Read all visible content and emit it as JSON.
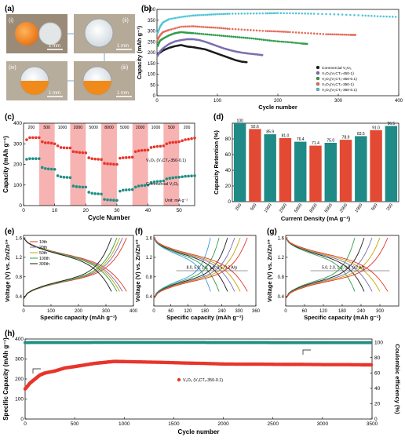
{
  "panel_letters": [
    "(a)",
    "(b)",
    "(c)",
    "(d)",
    "(e)",
    "(f)",
    "(g)",
    "(h)"
  ],
  "photo_labels": [
    "(i)",
    "(ii)",
    "(iii)",
    "(iv)"
  ],
  "scale_label": "1 mm",
  "colors": {
    "red": "#e8352b",
    "teal": "#1f8f83",
    "green": "#2f9e4a",
    "purple": "#7a6fb0",
    "black": "#1a1a1a",
    "salmon": "#e56b5a",
    "cyan": "#4fc6d8",
    "band": "#f7b2b2",
    "barRed": "#e24a33",
    "barTeal": "#1f8a86"
  },
  "chart_data": [
    {
      "id": "b",
      "type": "scatter",
      "xlabel": "Cycle number",
      "ylabel": "Capacity (mAh g⁻¹)",
      "xlim": [
        0,
        400
      ],
      "ylim": [
        0,
        400
      ],
      "xticks": [
        0,
        100,
        200,
        300,
        400
      ],
      "yticks": [
        0,
        50,
        100,
        150,
        200,
        250,
        300,
        350,
        400
      ],
      "legend_position": "bottom-right",
      "series": [
        {
          "name": "Commercial V₂O₅",
          "color": "#1a1a1a",
          "x": [
            1,
            5,
            10,
            20,
            30,
            40,
            50,
            60,
            70,
            80,
            90,
            100,
            110,
            120,
            130,
            140,
            150
          ],
          "y": [
            190,
            200,
            210,
            222,
            230,
            235,
            228,
            225,
            220,
            215,
            205,
            195,
            185,
            175,
            165,
            158,
            155
          ]
        },
        {
          "name": "V₂O₅(V₂CTₓ-450-1)",
          "color": "#7a6fb0",
          "x": [
            1,
            5,
            10,
            20,
            30,
            40,
            50,
            60,
            70,
            80,
            90,
            100,
            110,
            120,
            130,
            140,
            150,
            160,
            170,
            175
          ],
          "y": [
            185,
            205,
            220,
            240,
            252,
            258,
            262,
            262,
            258,
            250,
            240,
            230,
            220,
            212,
            205,
            200,
            196,
            193,
            190,
            188
          ]
        },
        {
          "name": "V₂O₅(V₂CTₓ-450-0.1)",
          "color": "#2f9e4a",
          "x": [
            1,
            5,
            10,
            20,
            30,
            40,
            50,
            60,
            80,
            100,
            120,
            140,
            160,
            180,
            200,
            220,
            240,
            250
          ],
          "y": [
            230,
            255,
            265,
            280,
            290,
            295,
            292,
            290,
            285,
            280,
            275,
            270,
            265,
            258,
            252,
            248,
            242,
            240
          ]
        },
        {
          "name": "V₂O₅(V₂CTₓ-350-1)",
          "color": "#e56b5a",
          "x": [
            1,
            5,
            10,
            20,
            40,
            60,
            80,
            100,
            120,
            150,
            180,
            200,
            220,
            250,
            280,
            300,
            320,
            330
          ],
          "y": [
            260,
            280,
            295,
            305,
            320,
            322,
            318,
            315,
            310,
            305,
            300,
            298,
            295,
            290,
            285,
            284,
            282,
            282
          ]
        },
        {
          "name": "V₂O₅(V₂CTₓ-350-0.1)",
          "color": "#4fc6d8",
          "x": [
            1,
            5,
            10,
            20,
            40,
            60,
            80,
            100,
            120,
            150,
            180,
            200,
            230,
            260,
            300,
            340,
            370,
            400
          ],
          "y": [
            290,
            320,
            340,
            355,
            365,
            372,
            375,
            378,
            380,
            381,
            382,
            383,
            382,
            380,
            377,
            372,
            368,
            365
          ]
        }
      ]
    },
    {
      "id": "c",
      "type": "scatter",
      "xlabel": "Cycle Number",
      "ylabel": "Capacity (mAh g⁻¹)",
      "xlim": [
        0,
        55
      ],
      "ylim": [
        0,
        400
      ],
      "xticks": [
        0,
        10,
        20,
        30,
        40,
        50
      ],
      "yticks": [
        0,
        100,
        200,
        300,
        400
      ],
      "current_densities": [
        "200",
        "500",
        "1000",
        "2000",
        "5000",
        "8000",
        "5000",
        "2000",
        "1000",
        "500",
        "200"
      ],
      "unit_note": "Unit: mA g⁻¹",
      "series": [
        {
          "name": "V₂O₅ (V₂CTₓ-350-0.1)",
          "color": "#e8352b",
          "x": [
            1,
            2,
            3,
            4,
            5,
            6,
            7,
            8,
            9,
            10,
            11,
            12,
            13,
            14,
            15,
            16,
            17,
            18,
            19,
            20,
            21,
            22,
            23,
            24,
            25,
            26,
            27,
            28,
            29,
            30,
            31,
            32,
            33,
            34,
            35,
            36,
            37,
            38,
            39,
            40,
            41,
            42,
            43,
            44,
            45,
            46,
            47,
            48,
            49,
            50,
            51,
            52,
            53,
            54,
            55
          ],
          "y": [
            320,
            330,
            330,
            330,
            330,
            310,
            305,
            305,
            303,
            300,
            290,
            282,
            281,
            280,
            280,
            262,
            260,
            258,
            257,
            256,
            232,
            228,
            226,
            225,
            224,
            205,
            203,
            202,
            201,
            200,
            230,
            232,
            233,
            234,
            235,
            262,
            266,
            268,
            269,
            270,
            282,
            285,
            287,
            288,
            290,
            300,
            305,
            307,
            308,
            310,
            315,
            320,
            322,
            325,
            328
          ]
        },
        {
          "name": "Commercial V₂O₅",
          "color": "#1f8f83",
          "x": [
            1,
            2,
            3,
            4,
            5,
            6,
            7,
            8,
            9,
            10,
            11,
            12,
            13,
            14,
            15,
            16,
            17,
            18,
            19,
            20,
            21,
            22,
            23,
            24,
            25,
            26,
            27,
            28,
            29,
            30,
            31,
            32,
            33,
            34,
            35,
            36,
            37,
            38,
            39,
            40,
            41,
            42,
            43,
            44,
            45,
            46,
            47,
            48,
            49,
            50,
            51,
            52,
            53,
            54,
            55
          ],
          "y": [
            225,
            228,
            228,
            228,
            228,
            185,
            180,
            178,
            177,
            176,
            145,
            140,
            138,
            137,
            136,
            95,
            92,
            91,
            90,
            90,
            65,
            60,
            58,
            57,
            56,
            30,
            28,
            27,
            26,
            25,
            70,
            75,
            76,
            77,
            78,
            90,
            95,
            97,
            98,
            100,
            112,
            115,
            117,
            118,
            120,
            130,
            133,
            135,
            137,
            138,
            140,
            142,
            143,
            144,
            145
          ]
        }
      ]
    },
    {
      "id": "d",
      "type": "bar",
      "xlabel": "Current Density (mA g⁻¹)",
      "ylabel": "Capacity Retention (%)",
      "ylim": [
        0,
        100
      ],
      "yticks": [
        0,
        20,
        40,
        60,
        80
      ],
      "categories": [
        "200",
        "500",
        "1000",
        "2000",
        "5000",
        "8000",
        "5000",
        "2000",
        "1000",
        "500",
        "200"
      ],
      "values": [
        100,
        92.6,
        85.9,
        81.0,
        76.4,
        71.4,
        75.0,
        78.9,
        83.5,
        91.0,
        96.5
      ],
      "value_labels": [
        "100",
        "92.6",
        "85.9",
        "81.0",
        "76.4",
        "71.4",
        "75.0",
        "78.9",
        "83.5",
        "91.0",
        "96.5"
      ]
    },
    {
      "id": "e",
      "type": "line",
      "xlabel": "Specific capacity (mAh g⁻¹)",
      "ylabel": "Voltage (V) vs. Zn/Zn²⁺",
      "xlim": [
        0,
        400
      ],
      "ylim": [
        0.2,
        1.65
      ],
      "xticks": [
        0,
        100,
        200,
        300,
        400
      ],
      "yticks": [
        0.4,
        0.8,
        1.2,
        1.6
      ],
      "legend": [
        "10th",
        "20th",
        "50th",
        "100th",
        "300th"
      ],
      "series_colors": [
        "#e8352b",
        "#7a6fb0",
        "#c9a400",
        "#2f9e4a",
        "#1a1a1a"
      ],
      "capacities": [
        375,
        360,
        350,
        340,
        320
      ]
    },
    {
      "id": "f",
      "type": "line",
      "xlabel": "Specific capacity (mAh g⁻¹)",
      "ylabel": "Voltage (V) vs. Zn/Zn²⁺",
      "xlim": [
        0,
        360
      ],
      "ylim": [
        0.2,
        1.65
      ],
      "xticks": [
        0,
        60,
        120,
        180,
        240,
        300,
        360
      ],
      "yticks": [
        0.4,
        0.8,
        1.2,
        1.6
      ],
      "annotation": "8.0, 5.0, 2.0, 1.0, 0.5, 0.2 A/g",
      "series_colors": [
        "#3a9bd9",
        "#2f9e4a",
        "#1a1a1a",
        "#7a6fb0",
        "#c9a400",
        "#e8352b"
      ],
      "capacities": [
        200,
        230,
        260,
        285,
        305,
        330
      ]
    },
    {
      "id": "g",
      "type": "line",
      "xlabel": "Specific capacity (mAh g⁻¹)",
      "ylabel": "Voltage (V) vs. Zn/Zn²⁺",
      "xlim": [
        0,
        360
      ],
      "ylim": [
        0.2,
        1.65
      ],
      "xticks": [
        0,
        60,
        120,
        180,
        240,
        300
      ],
      "yticks": [
        0.4,
        0.8,
        1.2,
        1.6
      ],
      "annotation": "5.0, 2.0, 1.0, 0.5, 0.2 A/g",
      "series_colors": [
        "#2f9e4a",
        "#1a1a1a",
        "#7a6fb0",
        "#c9a400",
        "#e8352b"
      ],
      "capacities": [
        220,
        250,
        275,
        300,
        325
      ]
    },
    {
      "id": "h",
      "type": "scatter",
      "xlabel": "Cycle number",
      "ylabel": "Specific Capacity (mAh g⁻¹)",
      "ylabel_right": "Coulombic efficiency (%)",
      "xlim": [
        0,
        3500
      ],
      "ylim": [
        0,
        400
      ],
      "xticks": [
        0,
        500,
        1000,
        1500,
        2000,
        2500,
        3000,
        3500
      ],
      "yticks": [
        0,
        100,
        200,
        300,
        400
      ],
      "y2ticks": [
        0,
        20,
        40,
        60,
        80,
        100
      ],
      "series": [
        {
          "name": "V₂O₅ (V₂CTₓ-350-0.1)",
          "color": "#e8352b",
          "x": [
            0,
            50,
            100,
            150,
            200,
            300,
            400,
            500,
            600,
            700,
            800,
            900,
            1000,
            1200,
            1400,
            1600,
            1800,
            2000,
            2200,
            2400,
            2600,
            2800,
            3000,
            3200,
            3400,
            3500
          ],
          "y": [
            150,
            180,
            200,
            220,
            230,
            240,
            255,
            262,
            270,
            278,
            283,
            288,
            287,
            285,
            283,
            280,
            278,
            275,
            274,
            274,
            273,
            273,
            272,
            272,
            271,
            271
          ]
        },
        {
          "name": "Coulombic efficiency",
          "color": "#1f8f83",
          "x": [
            0,
            500,
            1000,
            1500,
            2000,
            2500,
            3000,
            3500
          ],
          "y": [
            99.5,
            99.6,
            99.7,
            99.7,
            99.6,
            99.5,
            99.5,
            99.4
          ]
        }
      ]
    }
  ]
}
